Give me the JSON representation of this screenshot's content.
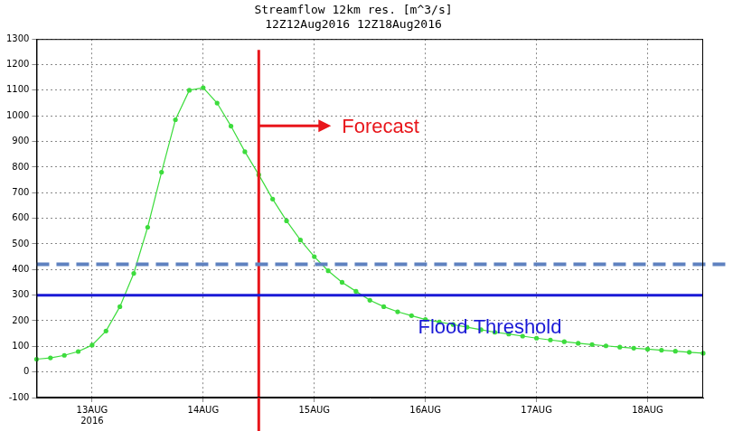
{
  "chart_data": {
    "type": "line",
    "title": "Streamflow 12km res. [m^3/s]",
    "subtitle": "12Z12Aug2016 12Z18Aug2016",
    "categories": [
      null,
      null,
      null,
      null,
      "13AUG\n2016",
      null,
      null,
      null,
      null,
      null,
      null,
      null,
      "14AUG",
      null,
      null,
      null,
      null,
      null,
      null,
      null,
      "15AUG",
      null,
      null,
      null,
      null,
      null,
      null,
      null,
      "16AUG",
      null,
      null,
      null,
      null,
      null,
      null,
      null,
      "17AUG",
      null,
      null,
      null,
      null,
      null,
      null,
      null,
      "18AUG",
      null,
      null,
      null,
      null
    ],
    "values": [
      50,
      55,
      65,
      80,
      105,
      160,
      255,
      385,
      565,
      780,
      985,
      1100,
      1110,
      1050,
      960,
      860,
      770,
      675,
      590,
      515,
      450,
      395,
      350,
      315,
      280,
      255,
      235,
      220,
      205,
      195,
      185,
      175,
      165,
      155,
      148,
      140,
      132,
      125,
      118,
      112,
      107,
      102,
      97,
      93,
      89,
      85,
      81,
      77,
      73
    ],
    "color": "#3ddc3d",
    "marker": "circle",
    "line_style": "solid",
    "ylim": [
      -100,
      1300
    ],
    "yticks": [
      -100,
      0,
      100,
      200,
      300,
      400,
      500,
      600,
      700,
      800,
      900,
      1000,
      1100,
      1200,
      1300
    ],
    "grid": true,
    "annotations": [
      {
        "text": "Forecast",
        "x": 16,
        "color": "#e8161b"
      },
      {
        "text": "Flood Threshold",
        "y": 300,
        "color": "#1a1ad6"
      },
      {
        "y": 420,
        "color": "#5f82c0",
        "line_style": "dashed"
      }
    ]
  }
}
